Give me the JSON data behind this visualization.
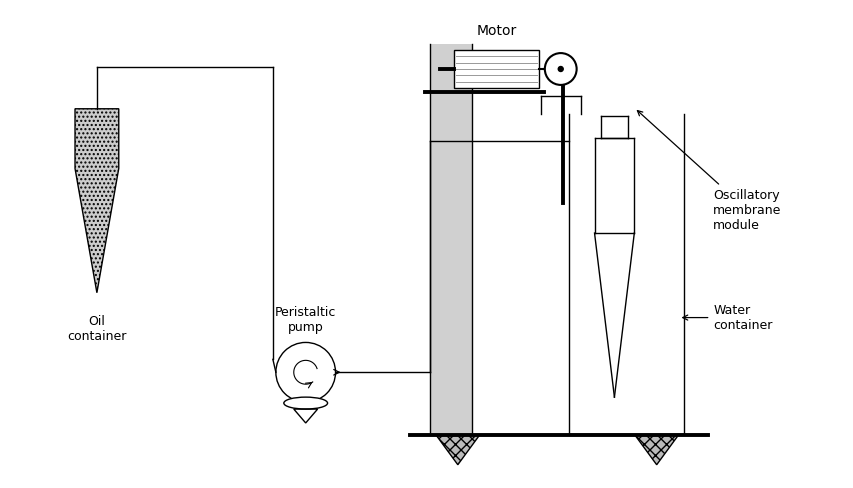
{
  "bg_color": "#ffffff",
  "line_color": "#000000",
  "labels": {
    "motor": "Motor",
    "oil_container": "Oil\ncontainer",
    "peristaltic_pump": "Peristaltic\npump",
    "oscillatory_membrane": "Oscillatory\nmembrane\nmodule",
    "water_container": "Water\ncontainer"
  },
  "label_fontsize": 9
}
